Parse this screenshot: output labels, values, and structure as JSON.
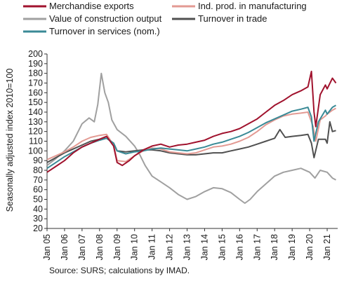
{
  "chart_data": {
    "type": "line",
    "ylabel": "Seasonally adjusted index 2010=100",
    "ylim": [
      20,
      200
    ],
    "yticks": [
      20,
      30,
      40,
      50,
      60,
      70,
      80,
      90,
      100,
      110,
      120,
      130,
      140,
      150,
      160,
      170,
      180,
      190,
      200
    ],
    "xticks": [
      "Jan 05",
      "Jan 06",
      "Jan 07",
      "Jan 08",
      "Jan 09",
      "Jan 10",
      "Jan 11",
      "Jan 12",
      "Jan 13",
      "Jan 14",
      "Jan 15",
      "Jan 16",
      "Jan 17",
      "Jan 18",
      "Jan 19",
      "Jan 20",
      "Jan 21"
    ],
    "x_range": [
      "Jan 05",
      "Jul 21"
    ],
    "grid": false,
    "legend_position": "top",
    "series": [
      {
        "name": "Merchandise exports",
        "color": "#a0122d",
        "points": [
          [
            2005.0,
            78
          ],
          [
            2005.5,
            84
          ],
          [
            2006.0,
            90
          ],
          [
            2006.5,
            98
          ],
          [
            2007.0,
            104
          ],
          [
            2007.5,
            108
          ],
          [
            2008.0,
            112
          ],
          [
            2008.4,
            115
          ],
          [
            2008.8,
            105
          ],
          [
            2009.0,
            88
          ],
          [
            2009.3,
            85
          ],
          [
            2009.7,
            90
          ],
          [
            2010.0,
            95
          ],
          [
            2010.5,
            101
          ],
          [
            2011.0,
            105
          ],
          [
            2011.5,
            107
          ],
          [
            2012.0,
            104
          ],
          [
            2012.5,
            106
          ],
          [
            2013.0,
            107
          ],
          [
            2013.5,
            109
          ],
          [
            2014.0,
            111
          ],
          [
            2014.5,
            115
          ],
          [
            2015.0,
            118
          ],
          [
            2015.5,
            120
          ],
          [
            2016.0,
            123
          ],
          [
            2016.5,
            128
          ],
          [
            2017.0,
            133
          ],
          [
            2017.5,
            140
          ],
          [
            2018.0,
            147
          ],
          [
            2018.5,
            152
          ],
          [
            2019.0,
            158
          ],
          [
            2019.5,
            162
          ],
          [
            2019.9,
            166
          ],
          [
            2020.1,
            182
          ],
          [
            2020.25,
            140
          ],
          [
            2020.35,
            125
          ],
          [
            2020.6,
            158
          ],
          [
            2020.9,
            168
          ],
          [
            2021.0,
            164
          ],
          [
            2021.3,
            175
          ],
          [
            2021.5,
            170
          ]
        ]
      },
      {
        "name": "Ind. prod. in manufacturing",
        "color": "#e39a93",
        "points": [
          [
            2005.0,
            91
          ],
          [
            2005.5,
            95
          ],
          [
            2006.0,
            99
          ],
          [
            2006.5,
            104
          ],
          [
            2007.0,
            110
          ],
          [
            2007.5,
            114
          ],
          [
            2008.0,
            116
          ],
          [
            2008.4,
            117
          ],
          [
            2008.8,
            106
          ],
          [
            2009.0,
            90
          ],
          [
            2009.5,
            89
          ],
          [
            2010.0,
            95
          ],
          [
            2010.5,
            100
          ],
          [
            2011.0,
            103
          ],
          [
            2011.5,
            102
          ],
          [
            2012.0,
            99
          ],
          [
            2012.5,
            98
          ],
          [
            2013.0,
            97
          ],
          [
            2013.5,
            98
          ],
          [
            2014.0,
            101
          ],
          [
            2014.5,
            104
          ],
          [
            2015.0,
            105
          ],
          [
            2015.5,
            107
          ],
          [
            2016.0,
            110
          ],
          [
            2016.5,
            114
          ],
          [
            2017.0,
            120
          ],
          [
            2017.5,
            127
          ],
          [
            2018.0,
            132
          ],
          [
            2018.5,
            136
          ],
          [
            2019.0,
            138
          ],
          [
            2019.5,
            139
          ],
          [
            2019.9,
            140
          ],
          [
            2020.2,
            125
          ],
          [
            2020.35,
            110
          ],
          [
            2020.6,
            132
          ],
          [
            2020.9,
            136
          ],
          [
            2021.0,
            138
          ],
          [
            2021.3,
            142
          ],
          [
            2021.5,
            144
          ]
        ]
      },
      {
        "name": "Value of construction output",
        "color": "#a0a0a0",
        "points": [
          [
            2005.0,
            85
          ],
          [
            2005.5,
            92
          ],
          [
            2006.0,
            100
          ],
          [
            2006.5,
            110
          ],
          [
            2007.0,
            128
          ],
          [
            2007.4,
            134
          ],
          [
            2007.7,
            130
          ],
          [
            2007.9,
            148
          ],
          [
            2008.1,
            180
          ],
          [
            2008.3,
            160
          ],
          [
            2008.5,
            150
          ],
          [
            2008.7,
            132
          ],
          [
            2009.0,
            122
          ],
          [
            2009.5,
            115
          ],
          [
            2010.0,
            105
          ],
          [
            2010.3,
            96
          ],
          [
            2010.6,
            85
          ],
          [
            2011.0,
            74
          ],
          [
            2011.5,
            68
          ],
          [
            2012.0,
            62
          ],
          [
            2012.5,
            55
          ],
          [
            2013.0,
            50
          ],
          [
            2013.5,
            53
          ],
          [
            2014.0,
            58
          ],
          [
            2014.5,
            62
          ],
          [
            2015.0,
            61
          ],
          [
            2015.5,
            57
          ],
          [
            2016.0,
            50
          ],
          [
            2016.3,
            46
          ],
          [
            2016.6,
            50
          ],
          [
            2017.0,
            58
          ],
          [
            2017.5,
            66
          ],
          [
            2018.0,
            74
          ],
          [
            2018.5,
            78
          ],
          [
            2019.0,
            80
          ],
          [
            2019.5,
            82
          ],
          [
            2020.0,
            78
          ],
          [
            2020.3,
            72
          ],
          [
            2020.6,
            80
          ],
          [
            2021.0,
            78
          ],
          [
            2021.3,
            72
          ],
          [
            2021.5,
            70
          ]
        ]
      },
      {
        "name": "Turnover in trade",
        "color": "#505050",
        "points": [
          [
            2005.0,
            88
          ],
          [
            2005.5,
            93
          ],
          [
            2006.0,
            98
          ],
          [
            2006.5,
            102
          ],
          [
            2007.0,
            106
          ],
          [
            2007.5,
            110
          ],
          [
            2008.0,
            112
          ],
          [
            2008.4,
            113
          ],
          [
            2008.8,
            108
          ],
          [
            2009.0,
            100
          ],
          [
            2009.5,
            99
          ],
          [
            2010.0,
            100
          ],
          [
            2010.5,
            101
          ],
          [
            2011.0,
            101
          ],
          [
            2011.5,
            100
          ],
          [
            2012.0,
            98
          ],
          [
            2012.5,
            97
          ],
          [
            2013.0,
            96
          ],
          [
            2013.5,
            96
          ],
          [
            2014.0,
            97
          ],
          [
            2014.5,
            98
          ],
          [
            2015.0,
            98
          ],
          [
            2015.5,
            100
          ],
          [
            2016.0,
            102
          ],
          [
            2016.5,
            104
          ],
          [
            2017.0,
            107
          ],
          [
            2017.5,
            110
          ],
          [
            2018.0,
            113
          ],
          [
            2018.3,
            122
          ],
          [
            2018.6,
            114
          ],
          [
            2019.0,
            115
          ],
          [
            2019.5,
            116
          ],
          [
            2019.9,
            117
          ],
          [
            2020.1,
            108
          ],
          [
            2020.25,
            93
          ],
          [
            2020.5,
            112
          ],
          [
            2020.9,
            112
          ],
          [
            2021.0,
            108
          ],
          [
            2021.15,
            130
          ],
          [
            2021.3,
            120
          ],
          [
            2021.5,
            121
          ]
        ]
      },
      {
        "name": "Turnover in services (nom.)",
        "color": "#3a8a96",
        "points": [
          [
            2005.0,
            82
          ],
          [
            2005.5,
            88
          ],
          [
            2006.0,
            94
          ],
          [
            2006.5,
            99
          ],
          [
            2007.0,
            104
          ],
          [
            2007.5,
            108
          ],
          [
            2008.0,
            111
          ],
          [
            2008.4,
            113
          ],
          [
            2008.8,
            108
          ],
          [
            2009.0,
            100
          ],
          [
            2009.5,
            97
          ],
          [
            2010.0,
            99
          ],
          [
            2010.5,
            100
          ],
          [
            2011.0,
            102
          ],
          [
            2011.5,
            103
          ],
          [
            2012.0,
            102
          ],
          [
            2012.5,
            101
          ],
          [
            2013.0,
            100
          ],
          [
            2013.5,
            102
          ],
          [
            2014.0,
            104
          ],
          [
            2014.5,
            107
          ],
          [
            2015.0,
            109
          ],
          [
            2015.5,
            112
          ],
          [
            2016.0,
            115
          ],
          [
            2016.5,
            119
          ],
          [
            2017.0,
            124
          ],
          [
            2017.5,
            129
          ],
          [
            2018.0,
            133
          ],
          [
            2018.5,
            137
          ],
          [
            2019.0,
            141
          ],
          [
            2019.5,
            143
          ],
          [
            2019.9,
            145
          ],
          [
            2020.1,
            135
          ],
          [
            2020.25,
            110
          ],
          [
            2020.5,
            130
          ],
          [
            2020.9,
            142
          ],
          [
            2021.0,
            138
          ],
          [
            2021.3,
            145
          ],
          [
            2021.5,
            147
          ]
        ]
      }
    ]
  },
  "source": "Source: SURS; calculations by IMAD."
}
